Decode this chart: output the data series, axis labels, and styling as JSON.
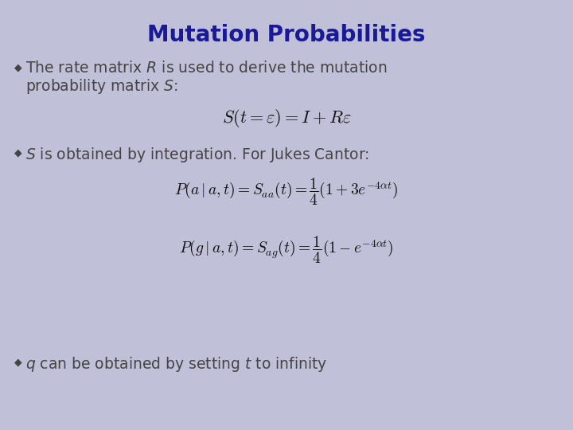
{
  "title": "Mutation Probabilities",
  "title_color": "#1a1a99",
  "title_fontsize": 20,
  "background_color": "#c0c0d8",
  "bullet_color": "#444444",
  "text_color": "#222222",
  "bullet1_line1": "The rate matrix $R$ is used to derive the mutation",
  "bullet1_line2": "probability matrix $S$:",
  "formula1": "$S(t = \\varepsilon) = I + R\\varepsilon$",
  "bullet2_text": "$S$ is obtained by integration. For Jukes Cantor:",
  "formula2a": "$P(a\\mid a,t) = S_{aa}(t) = \\dfrac{1}{4}(1 + 3e^{-4\\alpha t})$",
  "formula2b": "$P(g\\mid a,t) = S_{ag}(t) = \\dfrac{1}{4}(1 - e^{-4\\alpha t})$",
  "bullet3_text": "$q$ can be obtained by setting $t$ to infinity",
  "bullet_symbol": "◆",
  "body_fontsize": 13.5,
  "formula1_fontsize": 16,
  "formula2_fontsize": 14
}
